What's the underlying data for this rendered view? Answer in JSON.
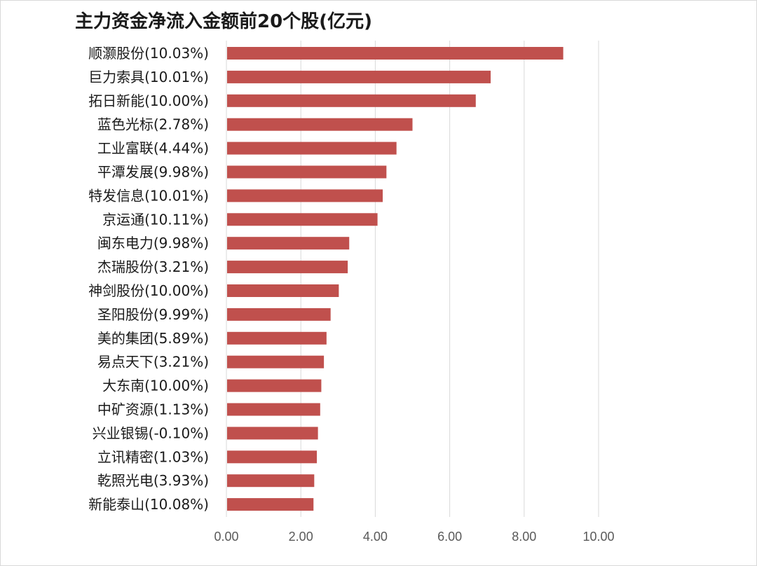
{
  "chart_data": {
    "type": "bar",
    "orientation": "horizontal",
    "title": "主力资金净流入金额前20个股(亿元)",
    "categories": [
      "顺灏股份(10.03%)",
      "巨力索具(10.01%)",
      "拓日新能(10.00%)",
      "蓝色光标(2.78%)",
      "工业富联(4.44%)",
      "平潭发展(9.98%)",
      "特发信息(10.01%)",
      "京运通(10.11%)",
      "闽东电力(9.98%)",
      "杰瑞股份(3.21%)",
      "神剑股份(10.00%)",
      "圣阳股份(9.99%)",
      "美的集团(5.89%)",
      "易点天下(3.21%)",
      "大东南(10.00%)",
      "中矿资源(1.13%)",
      "兴业银锡(-0.10%)",
      "立讯精密(1.03%)",
      "乾照光电(3.93%)",
      "新能泰山(10.08%)"
    ],
    "values": [
      9.05,
      7.1,
      6.7,
      5.0,
      4.57,
      4.3,
      4.2,
      4.06,
      3.3,
      3.26,
      3.02,
      2.8,
      2.69,
      2.62,
      2.55,
      2.52,
      2.46,
      2.43,
      2.36,
      2.34
    ],
    "xlim": [
      0,
      10
    ],
    "xticks": [
      "0.00",
      "2.00",
      "4.00",
      "6.00",
      "8.00",
      "10.00"
    ],
    "xtick_values": [
      0,
      2,
      4,
      6,
      8,
      10
    ],
    "xlabel": "",
    "ylabel": "",
    "grid": "vertical",
    "bar_color": "#c0504d",
    "grid_color": "#d9d9d9"
  }
}
